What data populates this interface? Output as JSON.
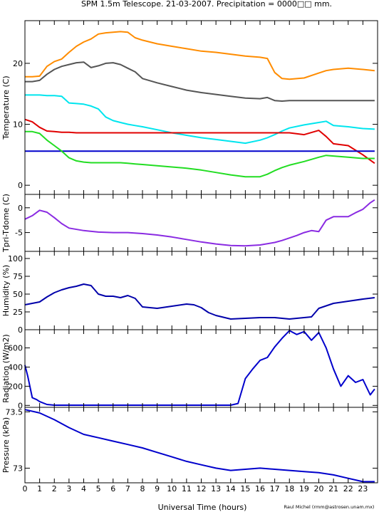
{
  "title": "SPM 1.5m Telescope. 21-03-2007. Precipitation = 0000□□ mm.",
  "credit": "Raul Michel (rmm@astrosen.unam.mx)",
  "chart_data": [
    {
      "type": "line",
      "ylabel": "Temperature (C)",
      "ylim": [
        -1.5,
        27
      ],
      "yticks": [
        0,
        10,
        20
      ],
      "x": [
        0,
        0.5,
        1,
        1.5,
        2,
        2.5,
        3,
        3.5,
        4,
        4.5,
        5,
        5.5,
        6,
        6.5,
        7,
        7.5,
        8,
        9,
        10,
        11,
        12,
        13,
        14,
        15,
        16,
        16.5,
        17,
        17.5,
        18,
        19,
        20,
        20.5,
        21,
        22,
        23,
        23.8
      ],
      "series": [
        {
          "color": "#ff8c00",
          "values": [
            17.8,
            17.8,
            17.9,
            19.5,
            20.3,
            20.7,
            21.8,
            22.8,
            23.5,
            24.0,
            24.8,
            25.0,
            25.1,
            25.2,
            25.1,
            24.2,
            23.8,
            23.2,
            22.8,
            22.4,
            22.0,
            21.8,
            21.5,
            21.2,
            21.0,
            20.8,
            18.5,
            17.5,
            17.4,
            17.6,
            18.4,
            18.8,
            19.0,
            19.2,
            19.0,
            18.8
          ]
        },
        {
          "color": "#555555",
          "values": [
            17.0,
            17.0,
            17.2,
            18.2,
            19.0,
            19.5,
            19.8,
            20.1,
            20.2,
            19.3,
            19.6,
            20.0,
            20.1,
            19.8,
            19.2,
            18.6,
            17.5,
            16.8,
            16.2,
            15.6,
            15.2,
            14.9,
            14.6,
            14.3,
            14.2,
            14.4,
            13.9,
            13.8,
            13.9,
            13.9,
            13.9,
            13.9,
            13.9,
            13.9,
            13.9,
            13.9
          ]
        },
        {
          "color": "#00e5ee",
          "values": [
            14.8,
            14.8,
            14.8,
            14.7,
            14.7,
            14.6,
            13.5,
            13.4,
            13.3,
            13.0,
            12.5,
            11.2,
            10.6,
            10.3,
            10.0,
            9.8,
            9.6,
            9.1,
            8.6,
            8.2,
            7.8,
            7.5,
            7.2,
            6.9,
            7.4,
            7.8,
            8.3,
            8.9,
            9.4,
            9.9,
            10.3,
            10.5,
            9.8,
            9.6,
            9.3,
            9.2
          ]
        },
        {
          "color": "#e00000",
          "values": [
            10.8,
            10.4,
            9.5,
            8.9,
            8.8,
            8.7,
            8.7,
            8.6,
            8.6,
            8.6,
            8.6,
            8.6,
            8.6,
            8.6,
            8.6,
            8.6,
            8.6,
            8.6,
            8.6,
            8.6,
            8.6,
            8.6,
            8.6,
            8.6,
            8.6,
            8.6,
            8.6,
            8.6,
            8.6,
            8.3,
            9.0,
            8.0,
            6.8,
            6.5,
            5.0,
            3.6
          ]
        },
        {
          "color": "#0000cc",
          "values": [
            5.6,
            5.6,
            5.6,
            5.6,
            5.6,
            5.6,
            5.6,
            5.6,
            5.6,
            5.6,
            5.6,
            5.6,
            5.6,
            5.6,
            5.6,
            5.6,
            5.6,
            5.6,
            5.6,
            5.6,
            5.6,
            5.6,
            5.6,
            5.6,
            5.6,
            5.6,
            5.6,
            5.6,
            5.6,
            5.6,
            5.6,
            5.6,
            5.6,
            5.6,
            5.6,
            5.6
          ]
        },
        {
          "color": "#22dd22",
          "values": [
            8.8,
            8.8,
            8.5,
            7.4,
            6.5,
            5.6,
            4.5,
            4.0,
            3.8,
            3.7,
            3.7,
            3.7,
            3.7,
            3.7,
            3.6,
            3.5,
            3.4,
            3.2,
            3.0,
            2.8,
            2.5,
            2.1,
            1.7,
            1.4,
            1.4,
            1.8,
            2.4,
            2.9,
            3.3,
            3.9,
            4.6,
            4.9,
            4.8,
            4.6,
            4.4,
            4.4
          ]
        }
      ]
    },
    {
      "type": "line",
      "ylabel": "Tpri-Tdome (C)",
      "ylim": [
        -8.8,
        2.7
      ],
      "yticks": [
        -5,
        0
      ],
      "x": [
        0,
        0.5,
        1,
        1.5,
        2,
        2.5,
        3,
        4,
        5,
        6,
        7,
        8,
        9,
        10,
        11,
        12,
        13,
        14,
        15,
        16,
        17,
        17.5,
        18,
        18.5,
        19,
        19.5,
        20,
        20.5,
        21,
        21.5,
        22,
        22.5,
        23,
        23.5,
        23.8
      ],
      "series": [
        {
          "color": "#8a2be2",
          "values": [
            -2.3,
            -1.6,
            -0.5,
            -0.9,
            -2.0,
            -3.2,
            -4.1,
            -4.6,
            -4.9,
            -5.0,
            -5.0,
            -5.2,
            -5.5,
            -5.9,
            -6.4,
            -6.9,
            -7.3,
            -7.6,
            -7.7,
            -7.5,
            -7.0,
            -6.6,
            -6.1,
            -5.6,
            -5.0,
            -4.6,
            -4.8,
            -2.5,
            -1.8,
            -1.8,
            -1.8,
            -1.0,
            -0.3,
            1.0,
            1.6
          ]
        }
      ]
    },
    {
      "type": "line",
      "ylabel": "Humidity (%)",
      "ylim": [
        0,
        110
      ],
      "yticks": [
        0,
        25,
        50,
        75,
        100
      ],
      "x": [
        0,
        0.5,
        1,
        1.5,
        2,
        2.5,
        3,
        3.5,
        4,
        4.5,
        5,
        5.5,
        6,
        6.5,
        7,
        7.5,
        8,
        9,
        10,
        11,
        11.5,
        12,
        12.5,
        13,
        14,
        15,
        16,
        17,
        18,
        19,
        19.5,
        20,
        21,
        22,
        23,
        23.8
      ],
      "series": [
        {
          "color": "#0000aa",
          "values": [
            35,
            37,
            39,
            46,
            52,
            56,
            59,
            61,
            64,
            62,
            50,
            47,
            47,
            45,
            48,
            44,
            32,
            30,
            33,
            36,
            35,
            31,
            24,
            20,
            15,
            16,
            17,
            17,
            15,
            17,
            18,
            30,
            37,
            40,
            43,
            45
          ]
        }
      ]
    },
    {
      "type": "line",
      "ylabel": "Radiation (W/m2)",
      "ylim": [
        -20,
        790
      ],
      "yticks": [
        0,
        200,
        400,
        600
      ],
      "x": [
        0,
        0.2,
        0.5,
        0.8,
        1,
        1.5,
        2,
        4,
        6,
        8,
        10,
        12,
        14,
        14.5,
        15,
        15.5,
        16,
        16.5,
        17,
        17.5,
        18,
        18.5,
        19,
        19.5,
        20,
        20.5,
        21,
        21.5,
        22,
        22.5,
        23,
        23.5,
        23.8
      ],
      "series": [
        {
          "color": "#0000cc",
          "values": [
            420,
            300,
            80,
            60,
            40,
            10,
            2,
            2,
            2,
            2,
            2,
            2,
            2,
            20,
            280,
            380,
            470,
            500,
            610,
            700,
            780,
            740,
            770,
            680,
            760,
            600,
            380,
            200,
            310,
            240,
            270,
            110,
            170
          ]
        }
      ]
    },
    {
      "type": "line",
      "ylabel": "Pressure (kPa)",
      "ylim": [
        72.87,
        73.54
      ],
      "yticks": [
        73.0,
        73.5
      ],
      "yticklabels": [
        "73",
        "73.5"
      ],
      "x": [
        0,
        1,
        2,
        3,
        4,
        5,
        6,
        7,
        8,
        9,
        10,
        11,
        12,
        13,
        14,
        15,
        16,
        17,
        18,
        19,
        20,
        21,
        22,
        23,
        23.8
      ],
      "series": [
        {
          "color": "#0000cc",
          "values": [
            73.52,
            73.49,
            73.43,
            73.36,
            73.3,
            73.27,
            73.24,
            73.21,
            73.18,
            73.14,
            73.1,
            73.06,
            73.03,
            73.0,
            72.98,
            72.99,
            73.0,
            72.99,
            72.98,
            72.97,
            72.96,
            72.94,
            72.91,
            72.88,
            72.88
          ]
        }
      ]
    }
  ],
  "xaxis": {
    "xlabel": "Universal Time (hours)",
    "xlim": [
      0,
      24
    ],
    "ticks": [
      0,
      1,
      2,
      3,
      4,
      5,
      6,
      7,
      8,
      9,
      10,
      11,
      12,
      13,
      14,
      15,
      16,
      17,
      18,
      19,
      20,
      21,
      22,
      23
    ]
  }
}
